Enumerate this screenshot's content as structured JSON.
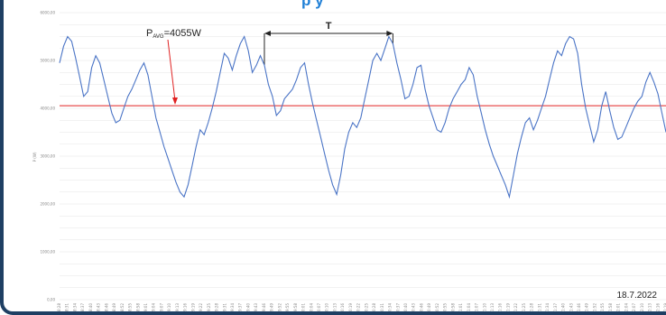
{
  "chart_data": {
    "type": "line",
    "title": "",
    "header_fragment": "p          y",
    "ylabel": "P (W)",
    "date_label": "18.7.2022",
    "ylim": [
      0,
      6000
    ],
    "y_ticks": [
      "0,00",
      "1000,00",
      "2000,00",
      "3000,00",
      "4000,00",
      "5000,00",
      "6000,00"
    ],
    "grid": "horizontal",
    "average": {
      "value": 4055,
      "label_main": "P",
      "label_sub": "AVG",
      "label_value": "=4055W",
      "color": "#e02020"
    },
    "period_annotation": {
      "label": "T",
      "from_index": 51,
      "to_index": 83
    },
    "series": [
      {
        "color": "#4a74c6",
        "values": [
          4950,
          5300,
          5500,
          5400,
          5050,
          4650,
          4250,
          4350,
          4850,
          5100,
          4950,
          4600,
          4250,
          3900,
          3700,
          3750,
          4000,
          4250,
          4400,
          4600,
          4800,
          4950,
          4700,
          4250,
          3800,
          3500,
          3200,
          2950,
          2700,
          2450,
          2250,
          2150,
          2400,
          2800,
          3200,
          3550,
          3450,
          3700,
          4000,
          4350,
          4750,
          5150,
          5050,
          4800,
          5100,
          5350,
          5500,
          5200,
          4750,
          4900,
          5100,
          4900,
          4500,
          4250,
          3850,
          3950,
          4200,
          4300,
          4400,
          4600,
          4850,
          4950,
          4500,
          4100,
          3750,
          3400,
          3050,
          2700,
          2400,
          2200,
          2600,
          3150,
          3500,
          3700,
          3600,
          3800,
          4200,
          4600,
          5000,
          5150,
          5000,
          5250,
          5500,
          5350,
          4950,
          4600,
          4200,
          4250,
          4500,
          4850,
          4900,
          4400,
          4050,
          3800,
          3550,
          3500,
          3700,
          4000,
          4200,
          4350,
          4500,
          4600,
          4850,
          4700,
          4250,
          3900,
          3550,
          3250,
          3000,
          2800,
          2600,
          2400,
          2150,
          2600,
          3050,
          3400,
          3700,
          3800,
          3550,
          3750,
          4000,
          4250,
          4600,
          4950,
          5200,
          5100,
          5350,
          5500,
          5450,
          5150,
          4500,
          4000,
          3650,
          3300,
          3550,
          4050,
          4350,
          3950,
          3600,
          3350,
          3400,
          3600,
          3800,
          4000,
          4150,
          4250,
          4550,
          4750,
          4550,
          4300,
          3900,
          3500
        ]
      }
    ],
    "x_ticks": [
      "08:28",
      "08:31",
      "08:34",
      "08:37",
      "08:40",
      "08:43",
      "08:46",
      "08:49",
      "08:52",
      "08:55",
      "08:58",
      "09:01",
      "09:04",
      "09:07",
      "09:10",
      "09:13",
      "09:16",
      "09:19",
      "09:22",
      "09:25",
      "09:28",
      "09:31",
      "09:34",
      "09:37",
      "09:40",
      "09:43",
      "09:46",
      "09:49",
      "09:52",
      "09:55",
      "09:58",
      "10:01",
      "10:04",
      "10:07",
      "10:10",
      "10:13",
      "10:16",
      "10:19",
      "10:22",
      "10:25",
      "10:28",
      "10:31",
      "10:34",
      "10:37",
      "10:40",
      "10:43",
      "10:46",
      "10:49",
      "10:52",
      "10:55",
      "10:58",
      "11:01",
      "11:04",
      "11:07",
      "11:10",
      "11:13",
      "11:16",
      "11:19",
      "11:22",
      "11:25",
      "11:28",
      "11:31",
      "11:34",
      "11:37",
      "11:40",
      "11:43",
      "11:46",
      "11:49",
      "11:52",
      "11:55",
      "11:58",
      "12:01",
      "12:04",
      "12:07",
      "12:10",
      "12:13",
      "12:16",
      "12:19"
    ]
  }
}
